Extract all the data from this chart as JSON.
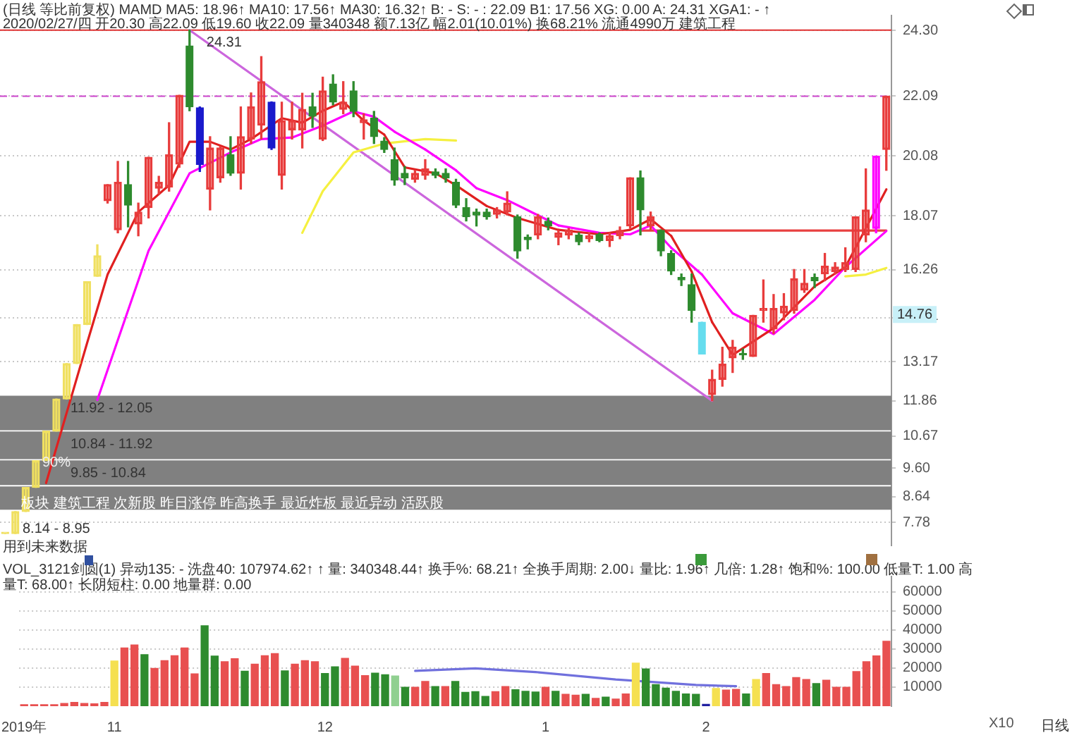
{
  "chart_data": [
    {
      "type": "candlestick",
      "title": "(日线 等比前复权) MAMD MA5: 18.96↑ MA10: 17.56↑ MA30: 16.32↑ B: - S: - : 22.09 B1: 17.56 XG: 0.00 A: 24.31 XGA1: - ↑",
      "subtitle": "2020/02/27/四 开20.30 高22.09 低19.60 收22.09 量340348 额7.13亿 幅2.01(10.01%) 换68.21% 流通4990万 建筑工程",
      "categories": [
        null,
        null,
        null,
        null,
        null,
        null,
        null,
        null,
        null,
        null,
        null,
        null,
        null,
        null,
        null,
        null,
        null,
        null,
        null,
        null,
        null,
        null,
        null,
        null,
        null,
        null,
        null,
        null,
        null,
        null,
        null,
        null,
        null,
        null,
        null,
        null,
        null,
        null,
        null,
        null,
        null,
        null,
        null,
        null,
        null,
        null,
        null,
        null,
        null,
        null,
        null,
        null,
        null,
        null,
        null,
        null,
        null,
        null,
        null,
        null,
        null,
        null,
        null,
        null,
        null,
        null,
        null,
        null,
        null,
        null,
        null,
        null,
        null,
        null,
        null,
        null,
        null,
        null,
        null,
        null,
        null,
        null,
        null,
        null,
        null,
        null,
        null
      ],
      "ohlc": [
        [
          7.4,
          7.4,
          7.4,
          7.4
        ],
        [
          7.4,
          8.14,
          7.4,
          8.14
        ],
        [
          8.14,
          8.95,
          8.14,
          8.95
        ],
        [
          8.95,
          9.85,
          8.95,
          9.85
        ],
        [
          9.85,
          10.84,
          9.85,
          10.84
        ],
        [
          10.84,
          11.92,
          10.84,
          11.92
        ],
        [
          11.92,
          13.11,
          11.92,
          13.11
        ],
        [
          13.11,
          14.42,
          13.11,
          14.42
        ],
        [
          14.42,
          15.86,
          14.42,
          15.86
        ],
        [
          16.04,
          17.1,
          16.04,
          16.73
        ],
        [
          18.58,
          19.12,
          18.5,
          19.12
        ],
        [
          17.6,
          19.9,
          17.5,
          19.2
        ],
        [
          19.12,
          19.9,
          17.7,
          18.43
        ],
        [
          17.8,
          18.5,
          17.4,
          18.2
        ],
        [
          18.35,
          20.04,
          18.0,
          20.04
        ],
        [
          19.0,
          19.4,
          18.8,
          19.2
        ],
        [
          19.04,
          21.2,
          18.9,
          20.12
        ],
        [
          19.81,
          22.12,
          19.7,
          22.12
        ],
        [
          23.78,
          24.31,
          21.6,
          21.73
        ],
        [
          21.7,
          21.73,
          19.56,
          19.8
        ],
        [
          18.97,
          20.73,
          18.27,
          20.35
        ],
        [
          19.35,
          20.4,
          19.2,
          20.35
        ],
        [
          20.12,
          20.73,
          19.43,
          19.5
        ],
        [
          19.5,
          21.73,
          18.97,
          20.73
        ],
        [
          20.65,
          22.2,
          20.5,
          21.73
        ],
        [
          21.12,
          23.42,
          20.65,
          22.58
        ],
        [
          21.89,
          21.9,
          20.3,
          20.35
        ],
        [
          19.43,
          21.89,
          18.97,
          21.27
        ],
        [
          20.96,
          21.89,
          20.65,
          21.27
        ],
        [
          20.96,
          22.19,
          20.35,
          21.65
        ],
        [
          21.73,
          22.19,
          21.04,
          21.42
        ],
        [
          20.65,
          22.73,
          20.6,
          22.27
        ],
        [
          22.5,
          22.81,
          21.8,
          21.89
        ],
        [
          21.65,
          22.58,
          21.5,
          21.89
        ],
        [
          22.27,
          22.58,
          21.4,
          21.58
        ],
        [
          21.2,
          21.5,
          20.65,
          21.3
        ],
        [
          21.35,
          21.58,
          20.5,
          20.73
        ],
        [
          20.58,
          20.7,
          20.2,
          20.3
        ],
        [
          19.96,
          20.35,
          19.1,
          19.27
        ],
        [
          19.5,
          19.73,
          19.12,
          19.35
        ],
        [
          19.3,
          19.6,
          19.2,
          19.5
        ],
        [
          19.43,
          19.96,
          19.3,
          19.65
        ],
        [
          19.55,
          19.65,
          19.35,
          19.43
        ],
        [
          19.5,
          19.65,
          19.2,
          19.35
        ],
        [
          19.2,
          19.3,
          18.35,
          18.43
        ],
        [
          18.35,
          18.65,
          17.9,
          18.04
        ],
        [
          18.2,
          18.3,
          17.73,
          18.1
        ],
        [
          18.2,
          18.3,
          17.96,
          18.04
        ],
        [
          18.12,
          18.35,
          18.0,
          18.27
        ],
        [
          18.2,
          18.88,
          18.1,
          18.5
        ],
        [
          18.04,
          18.1,
          16.65,
          16.89
        ],
        [
          17.35,
          17.43,
          16.96,
          17.27
        ],
        [
          17.43,
          18.12,
          17.3,
          18.04
        ],
        [
          17.89,
          18.0,
          17.6,
          17.73
        ],
        [
          17.35,
          17.58,
          17.1,
          17.5
        ],
        [
          17.43,
          17.65,
          17.3,
          17.6
        ],
        [
          17.43,
          17.5,
          17.1,
          17.2
        ],
        [
          17.3,
          17.5,
          17.2,
          17.4
        ],
        [
          17.45,
          17.5,
          17.2,
          17.24
        ],
        [
          17.24,
          17.5,
          17.04,
          17.4
        ],
        [
          17.4,
          17.7,
          17.3,
          17.58
        ],
        [
          17.73,
          19.35,
          17.65,
          19.35
        ],
        [
          19.35,
          19.58,
          17.43,
          18.27
        ],
        [
          17.73,
          18.2,
          17.6,
          18.04
        ],
        [
          17.58,
          17.6,
          16.73,
          16.89
        ],
        [
          16.81,
          16.9,
          16.1,
          16.22
        ],
        [
          16.0,
          16.12,
          15.73,
          15.92
        ],
        [
          15.76,
          16.12,
          14.5,
          14.89
        ],
        [
          14.5,
          14.5,
          13.43,
          13.43
        ],
        [
          12.07,
          12.89,
          11.86,
          12.58
        ],
        [
          12.58,
          13.66,
          12.35,
          13.09
        ],
        [
          13.3,
          13.89,
          12.81,
          13.66
        ],
        [
          13.45,
          13.6,
          13.25,
          13.4
        ],
        [
          13.35,
          14.73,
          13.35,
          14.73
        ],
        [
          14.89,
          15.92,
          14.5,
          14.96
        ],
        [
          14.27,
          15.43,
          14.12,
          14.96
        ],
        [
          14.81,
          15.46,
          14.58,
          15.04
        ],
        [
          14.89,
          16.27,
          14.8,
          15.96
        ],
        [
          15.58,
          16.27,
          15.5,
          15.81
        ],
        [
          16.0,
          16.12,
          15.66,
          15.89
        ],
        [
          16.12,
          16.81,
          15.89,
          16.38
        ],
        [
          16.2,
          16.5,
          16.12,
          16.35
        ],
        [
          16.27,
          17.0,
          16.2,
          16.5
        ],
        [
          16.27,
          18.04,
          16.2,
          18.04
        ],
        [
          17.43,
          19.65,
          17.2,
          18.27
        ],
        [
          17.65,
          20.08,
          17.5,
          20.08
        ],
        [
          20.3,
          22.09,
          19.6,
          22.09
        ]
      ],
      "colors": [
        "#f0e060",
        "#f0e060",
        "#f0e060",
        "#f0e060",
        "#f0e060",
        "#f0e060",
        "#f0e060",
        "#f0e060",
        "#f0e060",
        "#f0e060",
        "#e83c3c",
        "#e83c3c",
        "#2e8b2e",
        "#e83c3c",
        "#e83c3c",
        "#e83c3c",
        "#e83c3c",
        "#e83c3c",
        "#2e8b2e",
        "#1a1acc",
        "#e83c3c",
        "#e83c3c",
        "#2e8b2e",
        "#e83c3c",
        "#e83c3c",
        "#e83c3c",
        "#1a1acc",
        "#e83c3c",
        "#e83c3c",
        "#e83c3c",
        "#2e8b2e",
        "#e83c3c",
        "#2e8b2e",
        "#e83c3c",
        "#2e8b2e",
        "#e83c3c",
        "#2e8b2e",
        "#2e8b2e",
        "#2e8b2e",
        "#2e8b2e",
        "#e83c3c",
        "#e83c3c",
        "#2e8b2e",
        "#2e8b2e",
        "#2e8b2e",
        "#2e8b2e",
        "#2e8b2e",
        "#2e8b2e",
        "#e83c3c",
        "#e83c3c",
        "#2e8b2e",
        "#2e8b2e",
        "#e83c3c",
        "#2e8b2e",
        "#e83c3c",
        "#e83c3c",
        "#2e8b2e",
        "#e83c3c",
        "#2e8b2e",
        "#e83c3c",
        "#e83c3c",
        "#e83c3c",
        "#2e8b2e",
        "#e83c3c",
        "#2e8b2e",
        "#2e8b2e",
        "#2e8b2e",
        "#2e8b2e",
        "#66ddee",
        "#e83c3c",
        "#e83c3c",
        "#e83c3c",
        "#2e8b2e",
        "#e83c3c",
        "#e83c3c",
        "#e83c3c",
        "#e83c3c",
        "#e83c3c",
        "#e83c3c",
        "#2e8b2e",
        "#e83c3c",
        "#e83c3c",
        "#e83c3c",
        "#e83c3c",
        "#e83c3c",
        "#ff00ff",
        "#e83c3c"
      ],
      "series": [
        {
          "type": "line",
          "color": "#e02020",
          "values": [
            null,
            null,
            null,
            null,
            9.1,
            null,
            null,
            null,
            13.8,
            null,
            16.1,
            null,
            null,
            18.2,
            null,
            null,
            19.1,
            null,
            20.56,
            null,
            20.56,
            null,
            20.3,
            null,
            20.65,
            null,
            null,
            21.35,
            null,
            21.2,
            null,
            21.6,
            null,
            21.9,
            null,
            21.27,
            null,
            20.8,
            null,
            19.7,
            null,
            null,
            19.5,
            null,
            19.1,
            null,
            null,
            18.4,
            null,
            null,
            18.0,
            null,
            null,
            null,
            17.6,
            null,
            null,
            null,
            17.45,
            null,
            null,
            17.6,
            null,
            17.96,
            null,
            17.4,
            null,
            16.2,
            null,
            14.5,
            null,
            13.4,
            null,
            null,
            null,
            14.3,
            null,
            null,
            null,
            15.7,
            null,
            null,
            16.35,
            null,
            null,
            null,
            18.96
          ],
          "colors": [
            null,
            null,
            null,
            null,
            "#e02020",
            null,
            null,
            null,
            "#e02020",
            null,
            "#e02020",
            null,
            null,
            "#e02020",
            null,
            null,
            "#e02020",
            null,
            "#e02020",
            null,
            "#e02020",
            null,
            "#e02020",
            null,
            "#e02020",
            null,
            null,
            "#e02020",
            null,
            "#e02020",
            null,
            "#e02020",
            null,
            "#33cc33",
            null,
            "#33cc33",
            null,
            "#33cc33",
            null,
            "#33cc33",
            null,
            null,
            "#33cc33",
            null,
            "#33cc33",
            null,
            null,
            "#33cc33",
            null,
            null,
            "#33cc33",
            null,
            null,
            null,
            "#33cc33",
            null,
            null,
            null,
            "#e02020",
            null,
            null,
            "#e02020",
            null,
            "#33cc33",
            null,
            "#33cc33",
            null,
            "#33cc33",
            null,
            "#33cc33",
            null,
            "#e02020",
            null,
            null,
            null,
            "#e02020",
            null,
            null,
            null,
            "#e02020",
            null,
            null,
            "#e02020",
            null,
            null,
            null,
            null
          ]
        },
        {
          "type": "line",
          "color": "#ff00ff",
          "values": [
            null,
            null,
            null,
            null,
            null,
            null,
            null,
            null,
            null,
            11.89,
            null,
            13.9,
            null,
            null,
            16.9,
            null,
            null,
            null,
            19.5,
            null,
            null,
            null,
            20.2,
            null,
            null,
            20.65,
            null,
            null,
            20.7,
            null,
            null,
            21.1,
            null,
            null,
            21.58,
            null,
            21.4,
            null,
            20.9,
            null,
            null,
            20.3,
            null,
            null,
            19.6,
            null,
            19.0,
            null,
            null,
            18.6,
            null,
            null,
            null,
            null,
            17.75,
            null,
            null,
            null,
            17.5,
            null,
            null,
            17.45,
            null,
            17.75,
            null,
            17.0,
            null,
            null,
            16.1,
            null,
            null,
            14.8,
            null,
            null,
            null,
            14.1,
            null,
            null,
            null,
            15.25,
            null,
            null,
            16.35,
            null,
            null,
            null,
            17.56
          ],
          "colors": [
            null,
            null,
            null,
            null,
            null,
            null,
            null,
            null,
            null,
            "#ff00ff",
            null,
            "#ff00ff",
            null,
            null,
            "#ff00ff",
            null,
            null,
            null,
            "#ff00ff",
            null,
            null,
            null,
            "#ff00ff",
            null,
            null,
            "#ff00ff",
            null,
            null,
            "#ff00ff",
            null,
            null,
            "#ff00ff",
            null,
            null,
            "#ff00ff",
            null,
            "#33ddee",
            null,
            "#33ddee",
            null,
            null,
            "#33ddee",
            null,
            null,
            "#33ddee",
            null,
            "#33ddee",
            null,
            null,
            "#33ddee",
            null,
            null,
            null,
            null,
            "#33ddee",
            null,
            null,
            null,
            "#ff00ff",
            null,
            null,
            "#ff00ff",
            null,
            "#33ddee",
            null,
            "#33ddee",
            null,
            null,
            "#33ddee",
            null,
            null,
            "#33ddee",
            null,
            null,
            null,
            "#ff00ff",
            null,
            null,
            null,
            "#ff00ff",
            null,
            null,
            "#ff00ff",
            null,
            null,
            null,
            null
          ]
        },
        {
          "type": "line",
          "color": "#f5f040",
          "values": [
            null,
            null,
            null,
            null,
            null,
            null,
            null,
            null,
            null,
            null,
            null,
            null,
            null,
            null,
            null,
            null,
            null,
            null,
            null,
            null,
            null,
            null,
            null,
            null,
            null,
            null,
            null,
            null,
            null,
            17.5,
            null,
            18.9,
            null,
            null,
            20.2,
            null,
            null,
            20.5,
            null,
            null,
            null,
            20.65,
            null,
            null,
            20.6,
            null,
            null,
            null,
            null,
            null,
            null,
            null,
            null,
            null,
            null,
            null,
            null,
            null,
            null,
            null,
            null,
            null,
            null,
            null,
            null,
            null,
            null,
            null,
            null,
            null,
            null,
            null,
            null,
            null,
            null,
            null,
            null,
            null,
            null,
            null,
            null,
            null,
            null,
            null,
            null,
            null,
            null
          ]
        },
        {
          "type": "line",
          "color": "#f5f040",
          "values": [
            null,
            null,
            null,
            null,
            null,
            null,
            null,
            null,
            null,
            null,
            null,
            null,
            null,
            null,
            null,
            null,
            null,
            null,
            null,
            null,
            null,
            null,
            null,
            null,
            null,
            null,
            null,
            null,
            null,
            null,
            null,
            null,
            null,
            null,
            null,
            null,
            null,
            null,
            null,
            null,
            null,
            null,
            null,
            null,
            null,
            null,
            null,
            null,
            null,
            null,
            null,
            null,
            null,
            null,
            null,
            null,
            null,
            null,
            null,
            null,
            null,
            null,
            null,
            null,
            null,
            null,
            null,
            null,
            null,
            null,
            null,
            null,
            null,
            null,
            null,
            null,
            null,
            null,
            null,
            null,
            null,
            null,
            16.04,
            null,
            16.1,
            null,
            16.32
          ]
        },
        {
          "type": "line",
          "color": "#cc66dd",
          "values": [
            null,
            null,
            null,
            null,
            null,
            null,
            null,
            null,
            null,
            null,
            null,
            null,
            null,
            null,
            null,
            null,
            null,
            null,
            24.31,
            null,
            null,
            null,
            null,
            null,
            null,
            null,
            null,
            null,
            null,
            null,
            null,
            null,
            null,
            null,
            null,
            null,
            null,
            null,
            null,
            null,
            null,
            null,
            null,
            null,
            null,
            null,
            null,
            null,
            null,
            null,
            null,
            null,
            null,
            null,
            null,
            null,
            null,
            null,
            null,
            null,
            null,
            null,
            null,
            null,
            null,
            null,
            null,
            null,
            null,
            11.86,
            null,
            null,
            null,
            null,
            null,
            null,
            null,
            null,
            null,
            null,
            null,
            null,
            null,
            null,
            null,
            null,
            null
          ]
        },
        {
          "type": "line",
          "color": "#e84040",
          "values": [
            null,
            null,
            null,
            null,
            null,
            null,
            null,
            null,
            null,
            null,
            null,
            null,
            null,
            null,
            null,
            null,
            null,
            null,
            null,
            null,
            null,
            null,
            null,
            null,
            null,
            null,
            null,
            null,
            null,
            null,
            null,
            null,
            null,
            null,
            null,
            null,
            null,
            null,
            null,
            null,
            null,
            null,
            null,
            null,
            null,
            null,
            null,
            null,
            null,
            null,
            null,
            null,
            null,
            null,
            null,
            null,
            null,
            null,
            null,
            null,
            null,
            null,
            17.58,
            null,
            null,
            null,
            null,
            null,
            null,
            null,
            null,
            null,
            null,
            null,
            null,
            null,
            null,
            null,
            null,
            null,
            null,
            null,
            null,
            null,
            null,
            null,
            17.58
          ]
        }
      ],
      "ylim": [
        7.0,
        24.8
      ],
      "yticks": [
        {
          "value": 24.3,
          "label": "24.30"
        },
        22.09,
        20.08,
        18.07,
        16.26,
        14.64,
        13.17,
        11.86,
        10.67,
        {
          "value": 9.6,
          "label": "9.60"
        },
        8.64,
        7.78
      ],
      "tick_labels": "y",
      "grid": "y",
      "legend": false,
      "marker": "none",
      "ref_lines": [
        {
          "axis": "y",
          "value": 24.31,
          "color": "#e03030"
        },
        {
          "axis": "y",
          "value": 22.09,
          "color": "#cc44cc",
          "line_style": "dashed"
        }
      ],
      "bands": [
        {
          "axis": "y",
          "from": 10.87,
          "to": 12.03,
          "label": "11.92 - 12.05",
          "color": "#808080"
        },
        {
          "axis": "y",
          "from": 9.9,
          "to": 10.83,
          "label": "10.84 - 11.92",
          "color": "#808080"
        },
        {
          "axis": "y",
          "from": 9.03,
          "to": 9.86,
          "label": "9.85 - 10.84",
          "color": "#808080"
        },
        {
          "axis": "y",
          "from": 8.2,
          "to": 8.98,
          "color": "#808080"
        }
      ],
      "annotations": [
        "板块 建筑工程 次新股 昨日涨停 昨高换手 最近炸板 最近异动 活跃股",
        "8.14 - 8.95",
        "90%",
        "用到未来数据",
        {
          "text": "24.31",
          "y": 24.31
        },
        {
          "text": "14.76",
          "y": 14.76
        }
      ]
    },
    {
      "type": "bar",
      "title": "VOL_3121剑圆(1) 异动135: - 洗盘40: 107974.62↑ ↑ 量: 340348.44↑ 换手%: 68.21↑ 全换手周期: 2.00↓ 量比: 1.96↑ 几倍: 1.28↑ 饱和%: 100.00 低量T: 1.00 高量T: 68.00↑ 长阴短柱: 0.00 地量群: 0.00",
      "categories": [
        "2019年",
        null,
        null,
        null,
        null,
        null,
        null,
        null,
        null,
        "11",
        null,
        null,
        null,
        null,
        null,
        null,
        null,
        null,
        null,
        null,
        null,
        null,
        null,
        null,
        null,
        null,
        null,
        null,
        null,
        null,
        "12",
        null,
        null,
        null,
        null,
        null,
        null,
        null,
        null,
        null,
        null,
        null,
        null,
        null,
        null,
        null,
        null,
        null,
        null,
        null,
        null,
        null,
        "1",
        null,
        null,
        null,
        null,
        null,
        null,
        null,
        null,
        null,
        null,
        null,
        null,
        null,
        null,
        null,
        "2",
        null,
        null,
        null,
        null,
        null,
        null,
        null,
        null,
        null,
        null,
        null,
        null,
        null,
        null,
        null,
        null,
        null,
        null
      ],
      "series": [
        {
          "type": "bar",
          "values": [
            800,
            800,
            800,
            800,
            1400,
            2000,
            1400,
            1200,
            2000,
            23700,
            30500,
            32100,
            27000,
            19800,
            23900,
            26500,
            30500,
            16900,
            42200,
            26300,
            23300,
            24900,
            18300,
            22000,
            26500,
            27600,
            18500,
            22000,
            23900,
            23300,
            17100,
            20600,
            25100,
            21000,
            16000,
            17300,
            16500,
            15800,
            9900,
            9900,
            13000,
            10300,
            10300,
            13000,
            7200,
            7600,
            5100,
            7600,
            10300,
            8600,
            7800,
            7400,
            9900,
            7800,
            6200,
            5800,
            6200,
            4100,
            4700,
            3700,
            6400,
            22600,
            19500,
            11300,
            9500,
            7800,
            6400,
            6200,
            1000,
            9300,
            8400,
            8800,
            6400,
            14000,
            17100,
            11300,
            10300,
            15000,
            14000,
            11900,
            13600,
            9900,
            9900,
            18100,
            23300,
            26400,
            34000
          ],
          "colors": [
            "#e85050",
            "#e85050",
            "#e85050",
            "#e85050",
            "#e85050",
            "#e85050",
            "#e85050",
            "#e85050",
            "#e85050",
            "#f5e050",
            "#e85050",
            "#e85050",
            "#2e8b2e",
            "#e85050",
            "#e85050",
            "#e85050",
            "#e85050",
            "#e85050",
            "#2e8b2e",
            "#2e8b2e",
            "#e85050",
            "#e85050",
            "#2e8b2e",
            "#e85050",
            "#e85050",
            "#e85050",
            "#2e8b2e",
            "#e85050",
            "#e85050",
            "#e85050",
            "#2e8b2e",
            "#2e8b2e",
            "#e85050",
            "#e85050",
            "#e85050",
            "#2e8b2e",
            "#2e8b2e",
            "#90d090",
            "#2e8b2e",
            "#e85050",
            "#e85050",
            "#2e8b2e",
            "#e85050",
            "#2e8b2e",
            "#2e8b2e",
            "#2e8b2e",
            "#2e8b2e",
            "#e85050",
            "#e85050",
            "#2e8b2e",
            "#2e8b2e",
            "#2e8b2e",
            "#e85050",
            "#2e8b2e",
            "#e85050",
            "#e85050",
            "#2e8b2e",
            "#e85050",
            "#2e8b2e",
            "#e85050",
            "#e85050",
            "#f5e050",
            "#2e8b2e",
            "#2e8b2e",
            "#2e8b2e",
            "#2e8b2e",
            "#2e8b2e",
            "#2e8b2e",
            "#2020a0",
            "#f5e050",
            "#e85050",
            "#e85050",
            "#2e8b2e",
            "#f5e050",
            "#e85050",
            "#e85050",
            "#e85050",
            "#e85050",
            "#e85050",
            "#2e8b2e",
            "#e85050",
            "#e85050",
            "#e85050",
            "#e85050",
            "#e85050",
            "#e85050",
            "#e85050"
          ]
        },
        {
          "type": "line",
          "color": "#7070dd",
          "values": [
            null,
            null,
            null,
            null,
            null,
            null,
            null,
            null,
            null,
            null,
            null,
            null,
            null,
            null,
            null,
            null,
            null,
            null,
            null,
            null,
            null,
            null,
            null,
            null,
            null,
            null,
            null,
            null,
            null,
            null,
            null,
            null,
            null,
            null,
            null,
            null,
            null,
            null,
            null,
            18500,
            null,
            null,
            null,
            null,
            null,
            19800,
            null,
            null,
            null,
            null,
            null,
            17900,
            null,
            null,
            null,
            null,
            null,
            null,
            null,
            14000,
            null,
            null,
            null,
            null,
            null,
            null,
            null,
            11100,
            null,
            null,
            null,
            10500,
            null,
            null,
            null,
            null,
            null,
            null,
            null,
            null,
            null,
            null,
            null,
            null,
            null,
            null,
            null
          ]
        }
      ],
      "ylim": [
        0,
        68000
      ],
      "yticks": [
        10000,
        20000,
        30000,
        40000,
        50000,
        60000
      ],
      "grid": "y",
      "legend": false,
      "marker": "none",
      "annotations": [
        "X10",
        "日线"
      ]
    }
  ]
}
